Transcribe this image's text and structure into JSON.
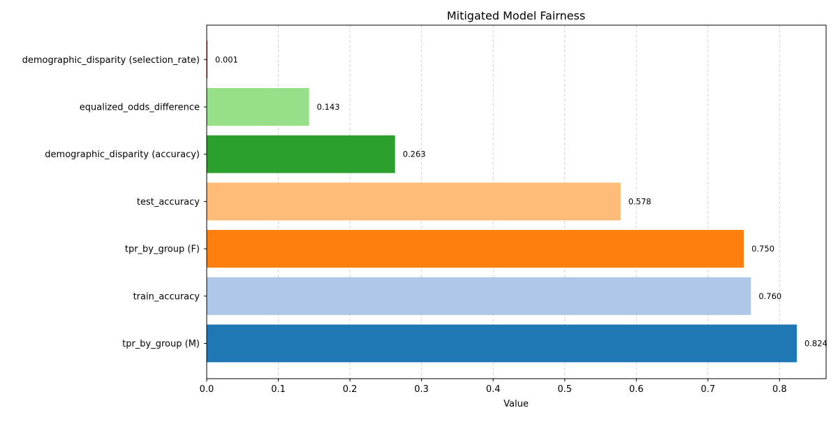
{
  "chart_data": {
    "type": "bar",
    "orientation": "horizontal",
    "title": "Mitigated Model Fairness",
    "xlabel": "Value",
    "ylabel": "",
    "xlim": [
      0,
      0.865
    ],
    "x_ticks": [
      "0.0",
      "0.1",
      "0.2",
      "0.3",
      "0.4",
      "0.5",
      "0.6",
      "0.7",
      "0.8"
    ],
    "grid": "vertical dashed",
    "legend": "none",
    "categories": [
      "tpr_by_group (M)",
      "train_accuracy",
      "tpr_by_group (F)",
      "test_accuracy",
      "demographic_disparity (accuracy)",
      "equalized_odds_difference",
      "demographic_disparity (selection_rate)"
    ],
    "values": [
      0.824,
      0.76,
      0.75,
      0.578,
      0.263,
      0.143,
      0.001
    ],
    "value_labels": [
      "0.824",
      "0.760",
      "0.750",
      "0.578",
      "0.263",
      "0.143",
      "0.001"
    ],
    "colors": [
      "#1f77b4",
      "#aec7e8",
      "#ff7f0e",
      "#ffbb78",
      "#2ca02c",
      "#98df8a",
      "#d62728"
    ]
  }
}
